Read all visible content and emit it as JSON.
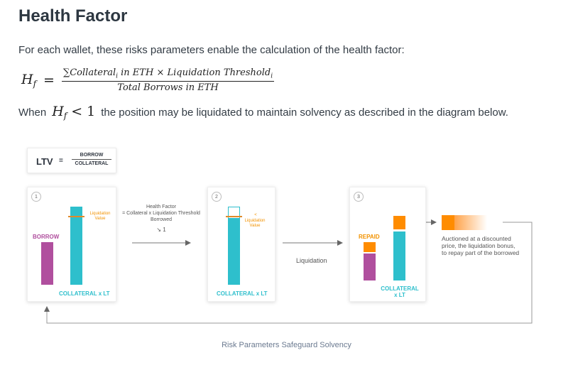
{
  "heading": "Health Factor",
  "intro": "For each wallet, these risks parameters enable the calculation of the health factor:",
  "formula": {
    "lhs": "H",
    "lhs_sub": "f",
    "equals": "=",
    "numerator_a": "∑Collateral",
    "numerator_a_sub": "i",
    "numerator_b": " in ETH × Liquidation Threshold",
    "numerator_b_sub": "i",
    "denominator": "Total Borrows in ETH"
  },
  "condition": {
    "prefix": "When",
    "var": "H",
    "var_sub": "f",
    "op": "<",
    "value": "1",
    "suffix": "the position may be liquidated to maintain solvency as described in the diagram below."
  },
  "diagram": {
    "ltv": {
      "label": "LTV",
      "equals": "=",
      "numerator": "BORROW",
      "denominator": "COLLATERAL"
    },
    "step1": {
      "number": "1",
      "borrow_label": "BORROW",
      "collateral_label": "COLLATERAL x LT",
      "liq_value_label": "Liquidation\nValue"
    },
    "arrow1": {
      "line1": "Health Factor",
      "line2": "= Collateral x Liquidation Threshold",
      "line3": "Borrowed",
      "line4": "↘ 1"
    },
    "step2": {
      "number": "2",
      "lt_symbol": "<",
      "liq_value_label": "Liquidation\nValue",
      "collateral_label": "COLLATERAL x LT"
    },
    "arrow2": {
      "label": "Liquidation"
    },
    "step3": {
      "number": "3",
      "repaid_label": "REPAID",
      "collateral_line1": "COLLATERAL",
      "collateral_line2": "x LT"
    },
    "auction": {
      "line1": "Auctioned at a discounted",
      "line2": "price, the liquidation bonus,",
      "line3": "to repay part of the borrowed"
    },
    "colors": {
      "teal": "#2ebfcc",
      "purple": "#b04f9e",
      "orange": "#ff8c00",
      "arrow": "#777777"
    }
  },
  "caption": "Risk Parameters Safeguard Solvency"
}
